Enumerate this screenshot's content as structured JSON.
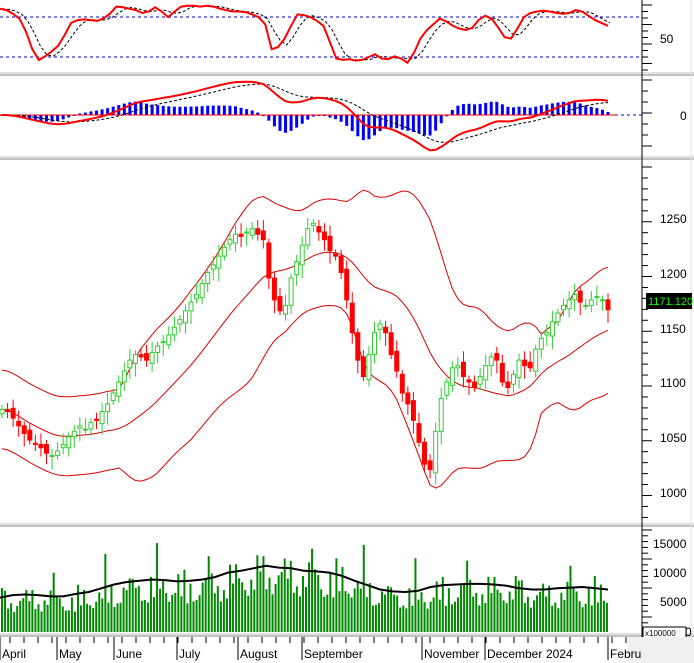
{
  "chart_data": [
    {
      "panel": "stochastic",
      "type": "line",
      "title": "",
      "yticks": [
        50
      ],
      "ylim": [
        10,
        100
      ],
      "reference_lines": [
        80,
        20
      ],
      "series": [
        {
          "name": "%K",
          "color": "#ff0000"
        },
        {
          "name": "%D",
          "color": "#000000",
          "style": "dashed"
        }
      ],
      "k_values": [
        92,
        90,
        85,
        78,
        60,
        35,
        20,
        25,
        32,
        40,
        55,
        72,
        76,
        77,
        76,
        75,
        78,
        85,
        95,
        94,
        92,
        90,
        86,
        88,
        94,
        88,
        80,
        88,
        95,
        96,
        96,
        95,
        96,
        95,
        92,
        90,
        88,
        88,
        87,
        84,
        80,
        70,
        35,
        38,
        50,
        68,
        84,
        83,
        80,
        75,
        68,
        45,
        22,
        20,
        21,
        19,
        20,
        24,
        28,
        22,
        21,
        25,
        22,
        16,
        30,
        50,
        62,
        70,
        78,
        74,
        68,
        64,
        62,
        65,
        76,
        82,
        78,
        66,
        52,
        50,
        64,
        80,
        86,
        88,
        89,
        88,
        86,
        85,
        86,
        90,
        88,
        82,
        76,
        72,
        68
      ]
    },
    {
      "panel": "macd",
      "type": "line+bar",
      "yticks": [
        0
      ],
      "series": [
        {
          "name": "MACD",
          "color": "#ff0000"
        },
        {
          "name": "Signal",
          "color": "#000000",
          "style": "dashed"
        },
        {
          "name": "Histogram",
          "color": "#0000ff",
          "type": "bar"
        }
      ]
    },
    {
      "panel": "price",
      "type": "candlestick",
      "title": "",
      "yticks": [
        1000,
        1050,
        1100,
        1150,
        1200,
        1250
      ],
      "ylim": [
        975,
        1290
      ],
      "last_price": "1171.120",
      "overlays": [
        "Bollinger Upper",
        "Bollinger Middle",
        "Bollinger Lower"
      ],
      "up_color": "#33cc33",
      "down_color": "#ff0000",
      "close": [
        1080,
        1078,
        1072,
        1065,
        1058,
        1052,
        1048,
        1045,
        1040,
        1038,
        1042,
        1048,
        1055,
        1060,
        1065,
        1062,
        1068,
        1070,
        1078,
        1085,
        1095,
        1105,
        1115,
        1125,
        1130,
        1128,
        1125,
        1132,
        1138,
        1142,
        1148,
        1155,
        1162,
        1170,
        1178,
        1185,
        1195,
        1205,
        1212,
        1220,
        1228,
        1235,
        1240,
        1238,
        1242,
        1245,
        1240,
        1235,
        1200,
        1180,
        1170,
        1175,
        1200,
        1215,
        1230,
        1245,
        1250,
        1242,
        1235,
        1225,
        1220,
        1205,
        1180,
        1150,
        1125,
        1110,
        1130,
        1150,
        1158,
        1150,
        1130,
        1115,
        1095,
        1085,
        1070,
        1050,
        1030,
        1025,
        1060,
        1090,
        1105,
        1118,
        1120,
        1110,
        1105,
        1100,
        1110,
        1120,
        1128,
        1125,
        1105,
        1100,
        1112,
        1125,
        1120,
        1118,
        1135,
        1145,
        1150,
        1160,
        1168,
        1175,
        1180,
        1185,
        1178,
        1175,
        1180,
        1183,
        1180,
        1171
      ]
    },
    {
      "panel": "volume",
      "type": "bar",
      "yticks": [
        5000,
        10000,
        15000
      ],
      "ylim": [
        0,
        16000
      ],
      "unit_label": "x100000",
      "series": [
        {
          "name": "Volume",
          "color": "#008800",
          "type": "bar"
        },
        {
          "name": "Volume MA",
          "color": "#000000",
          "type": "line"
        }
      ],
      "ma_values": [
        5500,
        5900,
        6000,
        5900,
        5700,
        5700,
        6100,
        6400,
        7000,
        7600,
        8000,
        8200,
        8400,
        8300,
        8100,
        8200,
        8400,
        8800,
        9500,
        9800,
        10200,
        10600,
        10300,
        10200,
        9800,
        9700,
        9500,
        9000,
        8200,
        7500,
        6800,
        6500,
        6400,
        6600,
        7200,
        7500,
        7600,
        7700,
        7700,
        7600,
        7400,
        7000,
        6800,
        6800,
        7000,
        7100,
        7200,
        7000,
        6800
      ]
    }
  ],
  "axes": {
    "stoch_tick": "50",
    "macd_tick": "0",
    "price_ticks": [
      "1250",
      "1200",
      "1150",
      "1100",
      "1050",
      "1000"
    ],
    "volume_ticks": [
      "15000",
      "10000",
      "5000",
      "0"
    ],
    "volume_unit": "x100000",
    "last_price": "1171.120"
  },
  "x_axis": {
    "months": [
      "April",
      "May",
      "June",
      "July",
      "August",
      "September",
      "November",
      "December",
      "2024",
      "Febru"
    ]
  }
}
